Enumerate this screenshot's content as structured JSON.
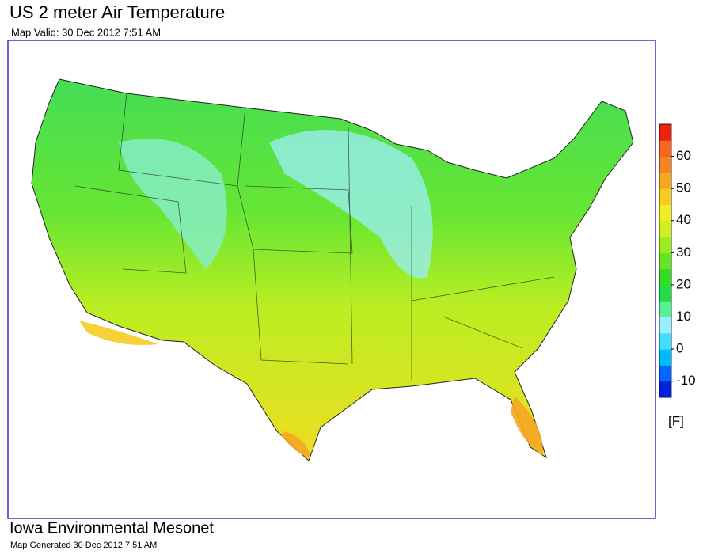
{
  "header": {
    "title": "US 2 meter Air Temperature",
    "subtitle": "Map Valid: 30 Dec 2012 7:51 AM"
  },
  "colorbar": {
    "range": [
      -15,
      70
    ],
    "ticks": [
      -10,
      0,
      10,
      20,
      30,
      40,
      50,
      60
    ],
    "unit": "[F]",
    "colors": [
      "#0022dd",
      "#0066ff",
      "#00bbff",
      "#44ddff",
      "#99eeff",
      "#55ee99",
      "#22dd44",
      "#33dd22",
      "#66e622",
      "#99ee22",
      "#ccee22",
      "#eeee22",
      "#f6cc22",
      "#f5a622",
      "#f58522",
      "#f56622",
      "#ee2211"
    ]
  },
  "footer": {
    "organization": "Iowa Environmental Mesonet",
    "generated": "Map Generated 30 Dec 2012 7:51 AM"
  }
}
